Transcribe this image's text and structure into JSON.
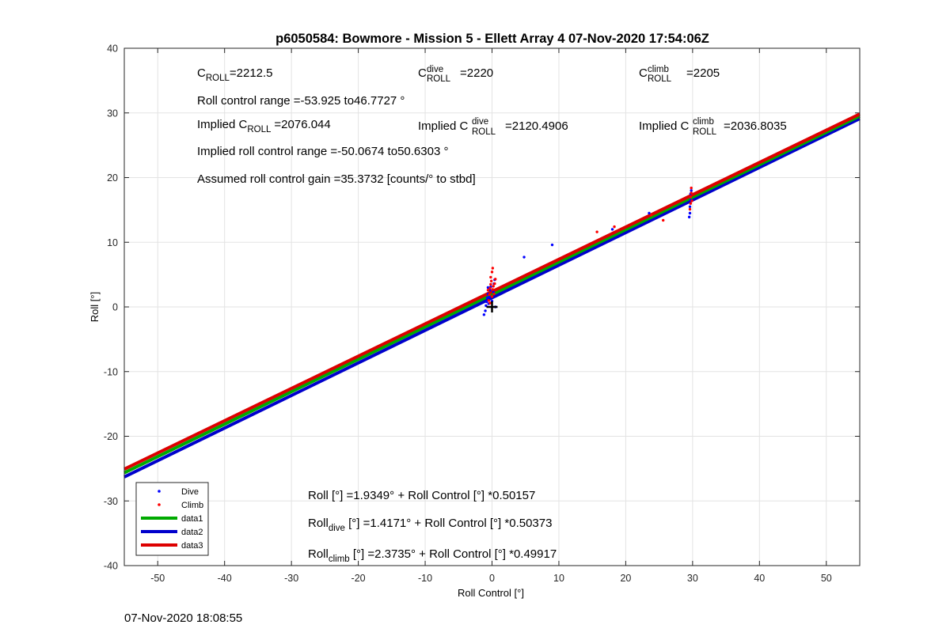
{
  "chart_data": {
    "type": "scatter",
    "title": "p6050584: Bowmore - Mission 5 - Ellett Array 4 07-Nov-2020 17:54:06Z",
    "xlabel": "Roll Control [°]",
    "ylabel": "Roll [°]",
    "xlim": [
      -55,
      55
    ],
    "ylim": [
      -40,
      40
    ],
    "xticks": [
      -50,
      -40,
      -30,
      -20,
      -10,
      0,
      10,
      20,
      30,
      40,
      50
    ],
    "yticks": [
      -40,
      -30,
      -20,
      -10,
      0,
      10,
      20,
      30,
      40
    ],
    "grid": true,
    "legend_position": "bottom-left",
    "series": [
      {
        "name": "Dive",
        "kind": "points",
        "color": "#0000ff",
        "points": [
          [
            -1.2,
            -1.2
          ],
          [
            -1.0,
            -0.6
          ],
          [
            -0.9,
            0.2
          ],
          [
            -0.8,
            0.8
          ],
          [
            -0.7,
            1.4
          ],
          [
            -0.6,
            2.0
          ],
          [
            -0.5,
            0.5
          ],
          [
            -0.4,
            1.6
          ],
          [
            -0.3,
            2.6
          ],
          [
            -0.2,
            3.1
          ],
          [
            0.0,
            0.9
          ],
          [
            0.2,
            2.3
          ],
          [
            0.3,
            3.6
          ],
          [
            0.4,
            4.2
          ],
          [
            -0.6,
            3.0
          ],
          [
            0.5,
            0.0
          ],
          [
            4.8,
            7.7
          ],
          [
            9.0,
            9.6
          ],
          [
            18.0,
            12.0
          ],
          [
            23.5,
            14.5
          ],
          [
            29.5,
            13.9
          ],
          [
            29.6,
            14.5
          ],
          [
            29.6,
            15.5
          ],
          [
            29.7,
            16.5
          ],
          [
            29.7,
            17.5
          ],
          [
            29.8,
            18.0
          ]
        ]
      },
      {
        "name": "Climb",
        "kind": "points",
        "color": "#ff0000",
        "points": [
          [
            -0.6,
            2.6
          ],
          [
            -0.5,
            1.0
          ],
          [
            -0.4,
            1.9
          ],
          [
            -0.3,
            2.9
          ],
          [
            -0.2,
            3.5
          ],
          [
            -0.1,
            4.0
          ],
          [
            0.0,
            1.6
          ],
          [
            0.1,
            2.7
          ],
          [
            0.2,
            3.2
          ],
          [
            0.3,
            2.0
          ],
          [
            -0.2,
            4.6
          ],
          [
            0.0,
            5.4
          ],
          [
            0.1,
            6.0
          ],
          [
            0.4,
            3.6
          ],
          [
            0.5,
            4.3
          ],
          [
            -0.3,
            0.6
          ],
          [
            15.7,
            11.6
          ],
          [
            18.3,
            12.4
          ],
          [
            23.8,
            14.2
          ],
          [
            25.6,
            13.4
          ],
          [
            29.6,
            15.1
          ],
          [
            29.7,
            16.0
          ],
          [
            29.7,
            17.0
          ],
          [
            29.8,
            17.6
          ],
          [
            29.8,
            18.4
          ],
          [
            29.9,
            16.4
          ]
        ]
      },
      {
        "name": "data1",
        "kind": "line",
        "color": "#00aa00",
        "intercept": 1.9349,
        "slope": 0.50157
      },
      {
        "name": "data2",
        "kind": "line",
        "color": "#0000cc",
        "intercept": 1.4171,
        "slope": 0.50373
      },
      {
        "name": "data3",
        "kind": "line",
        "color": "#dd0000",
        "intercept": 2.3735,
        "slope": 0.49917
      }
    ],
    "marker": {
      "type": "plus",
      "x": 0,
      "y": 0,
      "color": "#000000"
    },
    "annotations": {
      "c_roll_main": "C",
      "c_roll_sub": "ROLL",
      "c_roll_val": "=2212.5",
      "c_dive_main": "C",
      "c_dive_sup": "dive",
      "c_dive_sub": "ROLL",
      "c_dive_val": "=2220",
      "c_climb_main": "C",
      "c_climb_sup": "climb",
      "c_climb_sub": "ROLL",
      "c_climb_val": "=2205",
      "roll_range": "Roll control range =-53.925 to46.7727 °",
      "implied_lead": "Implied C",
      "implied_sub": "ROLL",
      "implied_val": "=2076.044",
      "implied_dive_lead": "Implied C",
      "implied_dive_sup": "dive",
      "implied_dive_sub": "ROLL",
      "implied_dive_val": "=2120.4906",
      "implied_climb_lead": "Implied C",
      "implied_climb_sup": "climb",
      "implied_climb_sub": "ROLL",
      "implied_climb_val": "=2036.8035",
      "implied_range": "Implied roll control range =-50.0674 to50.6303 °",
      "gain": "Assumed roll control gain =35.3732 [counts/° to stbd]",
      "fit_all": "Roll [°] =1.9349° + Roll Control [°] *0.50157",
      "fit_dive_lead": "Roll",
      "fit_dive_sub": "dive",
      "fit_dive_rest": " [°] =1.4171° + Roll Control [°] *0.50373",
      "fit_climb_lead": "Roll",
      "fit_climb_sub": "climb",
      "fit_climb_rest": " [°] =2.3735° + Roll Control [°] *0.49917"
    }
  },
  "footer": {
    "date": "07-Nov-2020 18:08:55"
  }
}
